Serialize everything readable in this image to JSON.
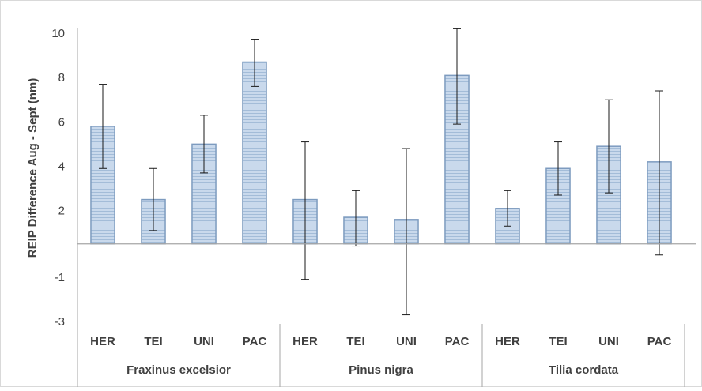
{
  "chart_data": {
    "type": "bar",
    "ylabel": "REIP Difference Aug - Sept (nm)",
    "y_tick_labels": [
      "10",
      "8",
      "6",
      "4",
      "2",
      "-1",
      "-3"
    ],
    "ylim": [
      -3.5,
      10.5
    ],
    "groups": [
      {
        "name": "Fraxinus excelsior",
        "categories": [
          "HER",
          "TEI",
          "UNI",
          "PAC"
        ],
        "values": [
          5.8,
          2.5,
          5.0,
          8.7
        ],
        "error_low": [
          3.9,
          1.1,
          3.7,
          7.6
        ],
        "error_high": [
          7.7,
          3.9,
          6.3,
          9.7
        ]
      },
      {
        "name": "Pinus nigra",
        "categories": [
          "HER",
          "TEI",
          "UNI",
          "PAC"
        ],
        "values": [
          2.5,
          1.7,
          1.6,
          8.1
        ],
        "error_low": [
          -1.1,
          0.4,
          -2.7,
          5.9
        ],
        "error_high": [
          5.1,
          2.9,
          4.8,
          10.2
        ]
      },
      {
        "name": "Tilia cordata",
        "categories": [
          "HER",
          "TEI",
          "UNI",
          "PAC"
        ],
        "values": [
          2.1,
          3.9,
          4.9,
          4.2
        ],
        "error_low": [
          1.3,
          2.7,
          2.8,
          0.0
        ],
        "error_high": [
          2.9,
          5.1,
          7.0,
          7.4
        ]
      }
    ],
    "colors": {
      "bar_fill": "#c5d6ea",
      "bar_stripe": "#9fb9d6",
      "bar_border": "#7d9bbf",
      "axis": "#a6a6a6"
    },
    "grid": false,
    "legend": "none"
  }
}
